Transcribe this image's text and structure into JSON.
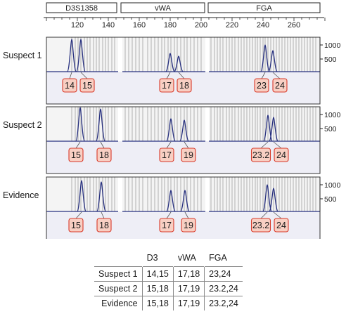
{
  "markers": [
    {
      "name": "D3S1358",
      "ticks": [
        120,
        140
      ]
    },
    {
      "name": "vWA",
      "ticks": [
        160,
        180,
        200
      ]
    },
    {
      "name": "FGA",
      "ticks": [
        220,
        240,
        260
      ]
    }
  ],
  "y_axis_ticks": [
    "1000",
    "500"
  ],
  "profiles": [
    {
      "name": "Suspect 1",
      "alleles": [
        [
          "14",
          "15"
        ],
        [
          "17",
          "18"
        ],
        [
          "23",
          "24"
        ]
      ]
    },
    {
      "name": "Suspect 2",
      "alleles": [
        [
          "15",
          "18"
        ],
        [
          "17",
          "19"
        ],
        [
          "23.2",
          "24"
        ]
      ]
    },
    {
      "name": "Evidence",
      "alleles": [
        [
          "15",
          "18"
        ],
        [
          "17",
          "19"
        ],
        [
          "23.2",
          "24"
        ]
      ]
    }
  ],
  "table": {
    "headers": [
      "D3",
      "vWA",
      "FGA"
    ],
    "rows": [
      {
        "name": "Suspect 1",
        "values": [
          "14,15",
          "17,18",
          "23,24"
        ]
      },
      {
        "name": "Suspect 2",
        "values": [
          "15,18",
          "17,19",
          "23.2,24"
        ]
      },
      {
        "name": "Evidence",
        "values": [
          "15,18",
          "17,19",
          "23.2,24"
        ]
      }
    ]
  },
  "colors": {
    "peak": "#27307f",
    "lane_bg": "#eeeef6",
    "ladder_bin": "#c9c9c9",
    "label_fill": "#f8cfc3",
    "label_stroke": "#d83a2a"
  }
}
